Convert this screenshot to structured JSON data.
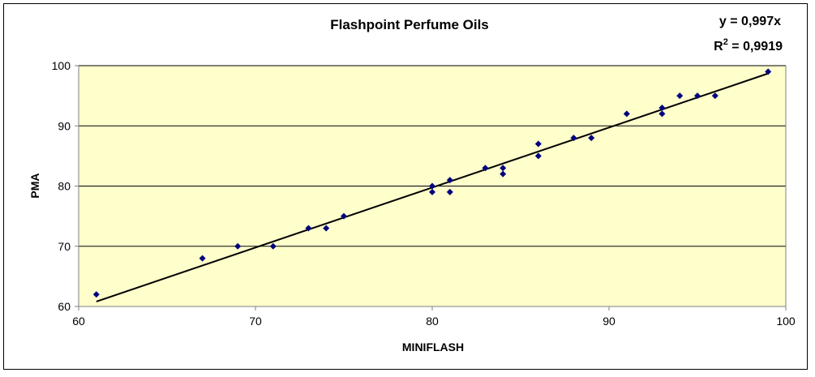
{
  "chart_data": {
    "type": "scatter",
    "title": "Flashpoint Perfume Oils",
    "xlabel": "MINIFLASH",
    "ylabel": "PMA",
    "xlim": [
      60,
      100
    ],
    "ylim": [
      60,
      100
    ],
    "xticks": [
      60,
      70,
      80,
      90,
      100
    ],
    "yticks": [
      60,
      70,
      80,
      90,
      100
    ],
    "grid": "horizontal",
    "colors": {
      "plot_bg": "#ffffcc",
      "marker": "#00007f",
      "trendline": "#000000",
      "grid": "#000000"
    },
    "marker": "diamond",
    "points": [
      [
        61,
        62
      ],
      [
        67,
        68
      ],
      [
        69,
        70
      ],
      [
        71,
        70
      ],
      [
        73,
        73
      ],
      [
        74,
        73
      ],
      [
        75,
        75
      ],
      [
        80,
        80
      ],
      [
        80,
        79
      ],
      [
        81,
        81
      ],
      [
        81,
        79
      ],
      [
        83,
        83
      ],
      [
        84,
        83
      ],
      [
        84,
        82
      ],
      [
        86,
        87
      ],
      [
        86,
        85
      ],
      [
        88,
        88
      ],
      [
        89,
        88
      ],
      [
        91,
        92
      ],
      [
        93,
        93
      ],
      [
        93,
        92
      ],
      [
        94,
        95
      ],
      [
        95,
        95
      ],
      [
        96,
        95
      ],
      [
        99,
        99
      ]
    ],
    "trendline": {
      "slope": 0.997,
      "intercept": 0,
      "x_range": [
        61,
        99
      ]
    },
    "annotations": {
      "equation": "y = 0,997x",
      "r2_prefix": "R",
      "r2_sup": "2",
      "r2_value": " = 0,9919"
    }
  }
}
